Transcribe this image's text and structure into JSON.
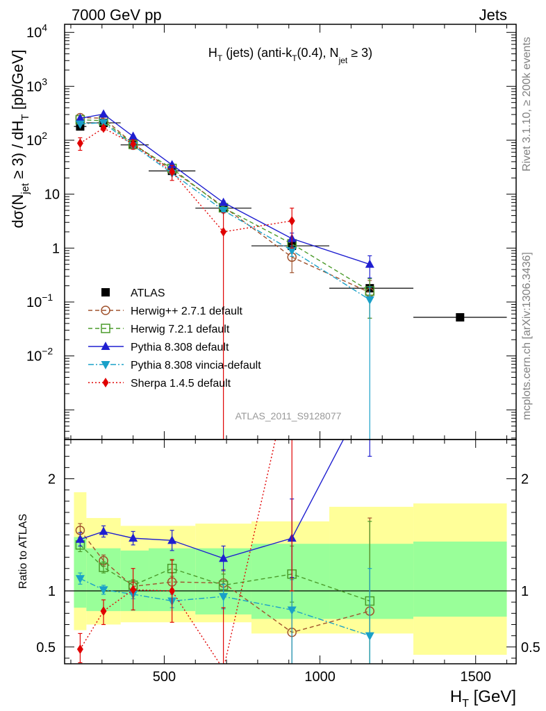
{
  "header": {
    "left": "7000 GeV pp",
    "right": "Jets"
  },
  "side_labels": {
    "rivet": "Rivet 3.1.10, ≥ 200k events",
    "mcplots": "mcplots.cern.ch [arXiv:1306.3436]"
  },
  "analysis_id": "ATLAS_2011_S9128077",
  "chart_data": [
    {
      "type": "line",
      "panel": "main",
      "title": "H_T (jets) (anti-k_T(0.4), N_jet ≥ 3)",
      "ylabel": "dσ(N_jet ≥ 3) / dH_T [pb/GeV]",
      "xlabel": "H_T [GeV]",
      "xlim": [
        180,
        1630
      ],
      "ylim_log10": [
        -3.55,
        4.15
      ],
      "yscale": "log",
      "y_tick_labels": [
        "10^-2",
        "10^-1",
        "1",
        "10",
        "10^2",
        "10^3",
        "10^4"
      ],
      "legend_position": "lower-left",
      "series": [
        {
          "name": "ATLAS",
          "color": "#000000",
          "marker": "square-filled",
          "line": "none",
          "x": [
            230,
            305,
            400,
            525,
            690,
            910,
            1160,
            1450
          ],
          "x_err": [
            [
              210,
              250
            ],
            [
              250,
              360
            ],
            [
              360,
              450
            ],
            [
              450,
              600
            ],
            [
              600,
              780
            ],
            [
              780,
              1030
            ],
            [
              1030,
              1300
            ],
            [
              1300,
              1600
            ]
          ],
          "y": [
            180,
            210,
            82,
            27,
            5.5,
            1.1,
            0.18,
            0.052
          ]
        },
        {
          "name": "Herwig++ 2.7.1 default",
          "color": "#a0522d",
          "marker": "circle-open",
          "line": "dashed",
          "x": [
            230,
            305,
            400,
            525,
            690,
            910,
            1160
          ],
          "y": [
            262,
            257,
            86,
            28,
            5.9,
            0.68,
            0.15
          ],
          "yerr": [
            [
              255,
              270
            ],
            [
              248,
              266
            ],
            [
              82,
              90
            ],
            [
              27,
              29.5
            ],
            [
              5.5,
              6.3
            ],
            [
              0.35,
              1.0
            ],
            [
              0.05,
              0.25
            ]
          ]
        },
        {
          "name": "Herwig 7.2.1 default",
          "color": "#4a9a2a",
          "marker": "square-open",
          "line": "dashed",
          "x": [
            230,
            305,
            400,
            525,
            690,
            910,
            1160
          ],
          "y": [
            240,
            230,
            84,
            30,
            5.6,
            1.2,
            0.16
          ],
          "yerr": [
            [
              232,
              248
            ],
            [
              222,
              238
            ],
            [
              80,
              88
            ],
            [
              28.5,
              31.5
            ],
            [
              5.2,
              6.0
            ],
            [
              0.9,
              1.5
            ],
            [
              0.05,
              0.27
            ]
          ]
        },
        {
          "name": "Pythia 8.308 default",
          "color": "#1f1fd0",
          "marker": "triangle-up",
          "line": "solid",
          "x": [
            230,
            305,
            400,
            525,
            690,
            910,
            1160
          ],
          "y": [
            255,
            305,
            118,
            35,
            7.0,
            1.5,
            0.5
          ],
          "yerr": [
            [
              247,
              263
            ],
            [
              296,
              314
            ],
            [
              113,
              123
            ],
            [
              33.5,
              36.5
            ],
            [
              6.5,
              7.5
            ],
            [
              1.1,
              1.9
            ],
            [
              0.28,
              0.72
            ]
          ]
        },
        {
          "name": "Pythia 8.308 vincia-default",
          "color": "#1aa0c8",
          "marker": "triangle-down",
          "line": "dashdot",
          "x": [
            230,
            305,
            400,
            525,
            690,
            910,
            1160
          ],
          "y": [
            200,
            212,
            80,
            24.5,
            5.0,
            0.9,
            0.11
          ],
          "yerr": [
            [
              193,
              207
            ],
            [
              205,
              219
            ],
            [
              76,
              84
            ],
            [
              23,
              26
            ],
            [
              4.6,
              5.4
            ],
            [
              0.7,
              1.1
            ],
            [
              0.0001,
              0.19
            ]
          ]
        },
        {
          "name": "Sherpa 1.4.5 default",
          "color": "#e00000",
          "marker": "diamond",
          "line": "dotted",
          "x": [
            230,
            305,
            400,
            525,
            690,
            910
          ],
          "y": [
            88,
            168,
            85,
            26,
            2.0,
            3.2
          ],
          "yerr": [
            [
              65,
              111
            ],
            [
              152,
              184
            ],
            [
              68,
              102
            ],
            [
              18,
              34
            ],
            [
              0.0001,
              4.5
            ],
            [
              1.0,
              5.5
            ]
          ]
        }
      ]
    },
    {
      "type": "line",
      "panel": "ratio",
      "ylabel": "Ratio to ATLAS",
      "xlabel": "H_T [GeV]",
      "xlim": [
        180,
        1630
      ],
      "ylim": [
        0.35,
        2.35
      ],
      "x_tick_labels": [
        "500",
        "1000",
        "1500"
      ],
      "y_tick_labels": [
        "0.5",
        "1",
        "2"
      ],
      "reference_line": 1,
      "bands": {
        "bins": [
          [
            210,
            250
          ],
          [
            250,
            360
          ],
          [
            360,
            450
          ],
          [
            450,
            600
          ],
          [
            600,
            780
          ],
          [
            780,
            1030
          ],
          [
            1030,
            1300
          ],
          [
            1300,
            1600
          ]
        ],
        "inner_colour": "#99ff99",
        "outer_colour": "#ffff99",
        "inner": [
          [
            0.85,
            1.48
          ],
          [
            0.82,
            1.38
          ],
          [
            0.82,
            1.36
          ],
          [
            0.82,
            1.38
          ],
          [
            0.79,
            1.38
          ],
          [
            0.75,
            1.42
          ],
          [
            0.75,
            1.42
          ],
          [
            0.77,
            1.44
          ]
        ],
        "outer": [
          [
            0.65,
            1.88
          ],
          [
            0.7,
            1.65
          ],
          [
            0.72,
            1.58
          ],
          [
            0.72,
            1.58
          ],
          [
            0.72,
            1.6
          ],
          [
            0.62,
            1.62
          ],
          [
            0.62,
            1.75
          ],
          [
            0.43,
            1.78
          ]
        ]
      },
      "series": [
        {
          "name": "Herwig++ 2.7.1 default",
          "x": [
            230,
            305,
            400,
            525,
            690,
            910,
            1160
          ],
          "y": [
            1.54,
            1.27,
            1.04,
            1.08,
            1.07,
            0.63,
            0.82
          ],
          "yerr": [
            [
              1.48,
              1.6
            ],
            [
              1.22,
              1.32
            ],
            [
              0.99,
              1.09
            ],
            [
              1.0,
              1.16
            ],
            [
              0.95,
              1.19
            ],
            [
              0.1,
              1.0
            ],
            [
              0.2,
              1.65
            ]
          ]
        },
        {
          "name": "Herwig 7.2.1 default",
          "x": [
            230,
            305,
            400,
            525,
            690,
            910,
            1160
          ],
          "y": [
            1.41,
            1.21,
            1.05,
            1.2,
            1.05,
            1.15,
            0.91
          ],
          "yerr": [
            [
              1.35,
              1.47
            ],
            [
              1.16,
              1.26
            ],
            [
              1.0,
              1.1
            ],
            [
              1.13,
              1.27
            ],
            [
              0.95,
              1.15
            ],
            [
              0.9,
              1.4
            ],
            [
              0.2,
              1.62
            ]
          ]
        },
        {
          "name": "Pythia 8.308 default",
          "x": [
            230,
            305,
            400,
            525,
            690,
            910,
            1160
          ],
          "y": [
            1.46,
            1.53,
            1.47,
            1.45,
            1.29,
            1.47,
            2.8
          ],
          "yerr": [
            [
              1.4,
              1.52
            ],
            [
              1.48,
              1.58
            ],
            [
              1.41,
              1.53
            ],
            [
              1.36,
              1.54
            ],
            [
              1.18,
              1.4
            ],
            [
              1.12,
              1.82
            ],
            [
              2.2,
              3.4
            ]
          ]
        },
        {
          "name": "Pythia 8.308 vincia-default",
          "x": [
            230,
            305,
            400,
            525,
            690,
            910,
            1160
          ],
          "y": [
            1.11,
            1.01,
            0.97,
            0.91,
            0.95,
            0.83,
            0.6
          ],
          "yerr": [
            [
              1.06,
              1.16
            ],
            [
              0.97,
              1.05
            ],
            [
              0.93,
              1.01
            ],
            [
              0.85,
              0.97
            ],
            [
              0.84,
              1.06
            ],
            [
              0.3,
              1.1
            ],
            [
              0.2,
              1.2
            ]
          ]
        },
        {
          "name": "Sherpa 1.4.5 default",
          "x": [
            230,
            305,
            400,
            525,
            690,
            910
          ],
          "y": [
            0.48,
            0.82,
            1.01,
            1.0,
            0.3,
            3.0
          ],
          "yerr": [
            [
              0.36,
              0.62
            ],
            [
              0.7,
              0.92
            ],
            [
              0.83,
              1.2
            ],
            [
              0.72,
              1.28
            ],
            [
              0.2,
              0.85
            ],
            [
              1.0,
              5.0
            ]
          ]
        }
      ]
    }
  ]
}
